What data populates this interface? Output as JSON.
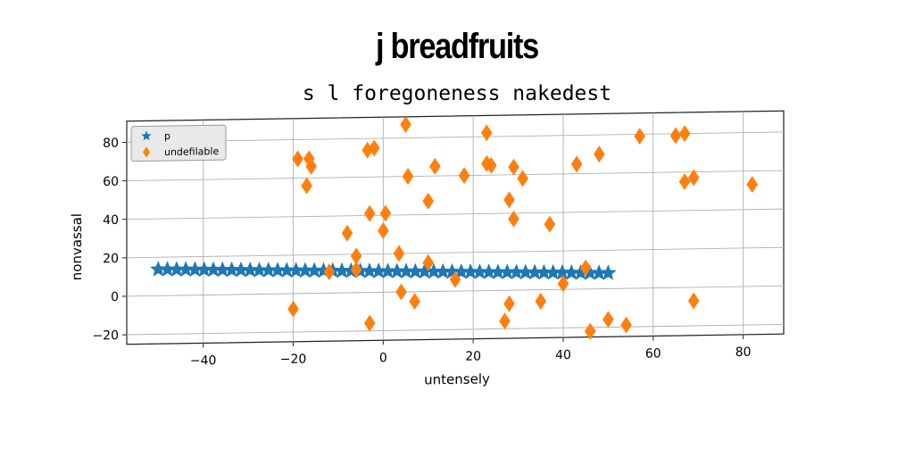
{
  "chart_data": {
    "type": "scatter",
    "title": "j breadfruits",
    "subtitle": "s l foregoneness nakedest",
    "xlabel": "untensely",
    "ylabel": "nonvassal",
    "xlim": [
      -57,
      89
    ],
    "ylim": [
      -25,
      91
    ],
    "x_ticks": [
      -40,
      -20,
      0,
      20,
      40,
      60,
      80
    ],
    "x_tick_labels": [
      "−40",
      "−20",
      "0",
      "20",
      "40",
      "60",
      "80"
    ],
    "y_ticks": [
      -20,
      0,
      20,
      40,
      60,
      80
    ],
    "y_tick_labels": [
      "−20",
      "0",
      "20",
      "40",
      "60",
      "80"
    ],
    "grid": true,
    "legend_position": "top-left",
    "series": [
      {
        "name": "p",
        "marker": "star",
        "color": "#1f77b4",
        "line": {
          "from": [
            -50,
            13.7
          ],
          "to": [
            50,
            8.1
          ],
          "count": 50
        }
      },
      {
        "name": "undefilable",
        "marker": "diamond",
        "color": "#ff7f0e",
        "points": [
          [
            -20,
            -8
          ],
          [
            -19,
            70
          ],
          [
            -17,
            56
          ],
          [
            -16.5,
            70
          ],
          [
            -16,
            66
          ],
          [
            -12,
            11
          ],
          [
            -8,
            31
          ],
          [
            -6,
            19
          ],
          [
            -6,
            12
          ],
          [
            -3.5,
            74
          ],
          [
            -2,
            75
          ],
          [
            -3,
            41
          ],
          [
            -3,
            -16
          ],
          [
            0,
            32
          ],
          [
            0.5,
            41
          ],
          [
            3.5,
            20
          ],
          [
            4,
            0
          ],
          [
            5,
            87
          ],
          [
            5.5,
            60
          ],
          [
            7,
            -5
          ],
          [
            10,
            47
          ],
          [
            10,
            15
          ],
          [
            11.5,
            65
          ],
          [
            16,
            6
          ],
          [
            18,
            60
          ],
          [
            23,
            82
          ],
          [
            23,
            66
          ],
          [
            24,
            65
          ],
          [
            28,
            47
          ],
          [
            28,
            -7
          ],
          [
            29,
            64
          ],
          [
            29,
            37
          ],
          [
            31,
            58
          ],
          [
            27,
            -16
          ],
          [
            35,
            -6
          ],
          [
            37,
            34
          ],
          [
            40,
            3
          ],
          [
            43,
            65
          ],
          [
            45,
            11
          ],
          [
            46,
            -22
          ],
          [
            48,
            70
          ],
          [
            50,
            -16
          ],
          [
            54,
            -19
          ],
          [
            57,
            79
          ],
          [
            65,
            79
          ],
          [
            67,
            80
          ],
          [
            67,
            55
          ],
          [
            69,
            57
          ],
          [
            69,
            -7
          ],
          [
            82,
            53
          ]
        ]
      }
    ]
  }
}
